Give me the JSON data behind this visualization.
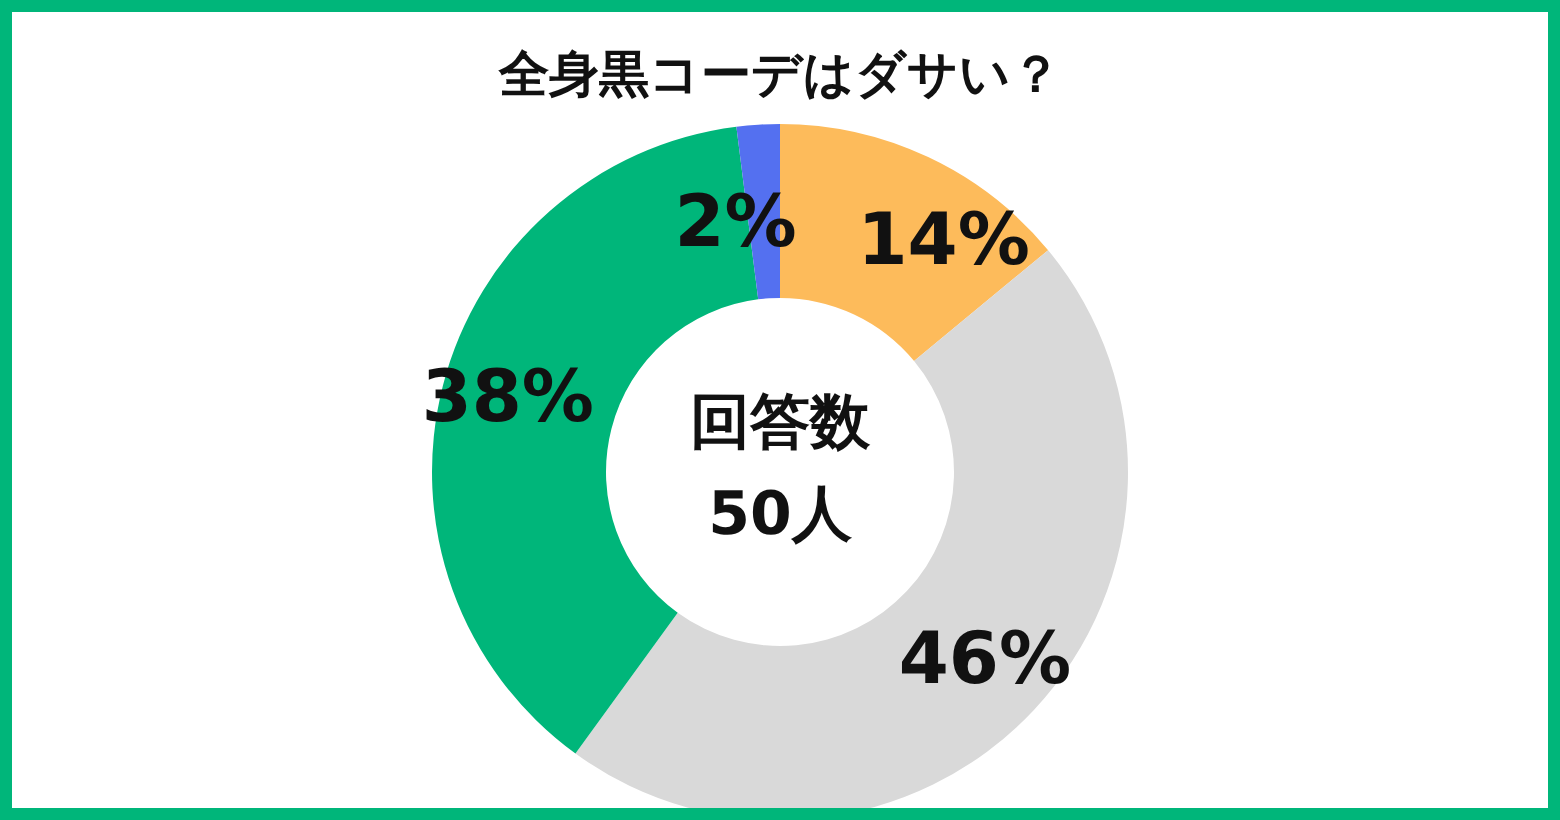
{
  "chart_data": {
    "type": "donut",
    "title": "全身黒コーデはダサい？",
    "categories": [
      null,
      null,
      null,
      null
    ],
    "values": [
      14,
      46,
      38,
      2
    ],
    "colors": [
      "#fdbb5b",
      "#d9d9d9",
      "#00b67a",
      "#5470f0"
    ],
    "value_labels": [
      "14%",
      "46%",
      "38%",
      "2%"
    ],
    "annotations": [
      "回答数",
      "50人"
    ],
    "legend": false
  }
}
